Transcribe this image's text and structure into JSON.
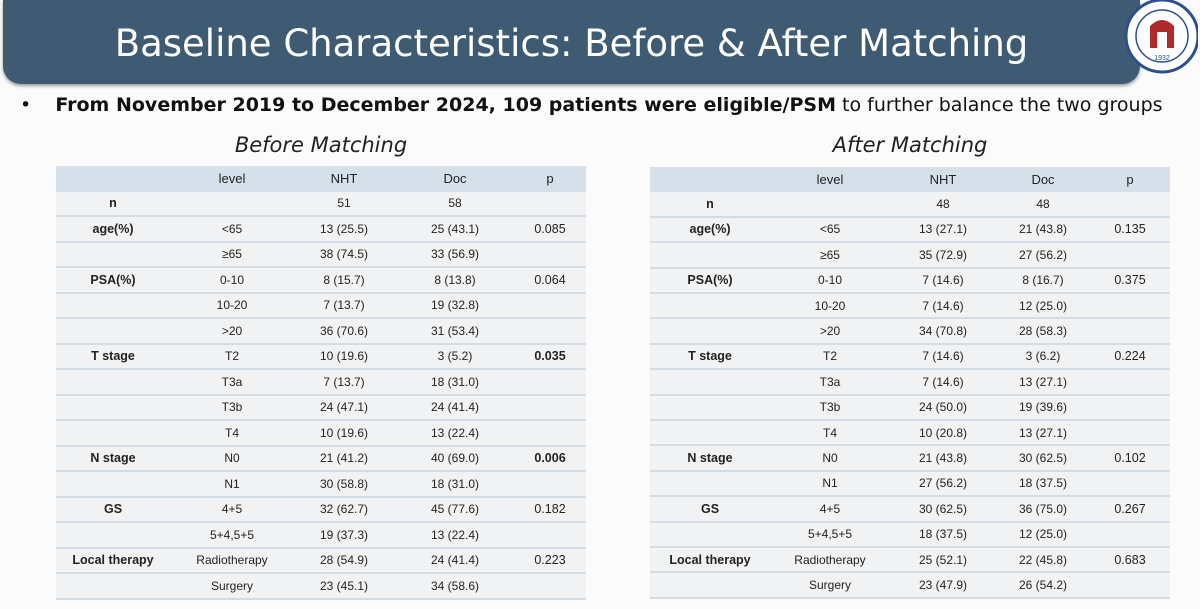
{
  "header": {
    "title": "Baseline Characteristics: Before & After Matching",
    "logo_text": "1932"
  },
  "bullet": {
    "bold": "From November 2019 to December 2024, 109 patients were eligible/PSM",
    "rest": " to further balance the two groups"
  },
  "tables": [
    {
      "caption": "Before Matching",
      "columns": [
        "level",
        "NHT",
        "Doc",
        "p"
      ],
      "rows": [
        {
          "cells": [
            "n",
            null,
            "51",
            "58",
            null
          ]
        },
        {
          "cells": [
            "age(%)",
            "<65",
            "13 (25.5)",
            "25 (43.1)",
            "0.085"
          ]
        },
        {
          "cells": [
            null,
            "≥65",
            "38 (74.5)",
            "33 (56.9)",
            null
          ]
        },
        {
          "cells": [
            "PSA(%)",
            "0-10",
            "8 (15.7)",
            "8 (13.8)",
            "0.064"
          ]
        },
        {
          "cells": [
            null,
            "10-20",
            "7 (13.7)",
            "19 (32.8)",
            null
          ]
        },
        {
          "cells": [
            null,
            ">20",
            "36 (70.6)",
            "31 (53.4)",
            null
          ]
        },
        {
          "cells": [
            "T stage",
            "T2",
            "10 (19.6)",
            "3 (5.2)",
            "0.035"
          ],
          "bold_p": true
        },
        {
          "cells": [
            null,
            "T3a",
            "7 (13.7)",
            "18 (31.0)",
            null
          ]
        },
        {
          "cells": [
            null,
            "T3b",
            "24 (47.1)",
            "24 (41.4)",
            null
          ]
        },
        {
          "cells": [
            null,
            "T4",
            "10 (19.6)",
            "13 (22.4)",
            null
          ]
        },
        {
          "cells": [
            "N stage",
            "N0",
            "21 (41.2)",
            "40 (69.0)",
            "0.006"
          ],
          "bold_p": true
        },
        {
          "cells": [
            null,
            "N1",
            "30 (58.8)",
            "18 (31.0)",
            null
          ]
        },
        {
          "cells": [
            "GS",
            "4+5",
            "32 (62.7)",
            "45 (77.6)",
            "0.182"
          ]
        },
        {
          "cells": [
            null,
            "5+4,5+5",
            "19 (37.3)",
            "13 (22.4)",
            null
          ]
        },
        {
          "cells": [
            "Local therapy",
            "Radiotherapy",
            "28 (54.9)",
            "24 (41.4)",
            "0.223"
          ]
        },
        {
          "cells": [
            null,
            "Surgery",
            "23 (45.1)",
            "34 (58.6)",
            null
          ]
        }
      ]
    },
    {
      "caption": "After Matching",
      "columns": [
        "level",
        "NHT",
        "Doc",
        "p"
      ],
      "rows": [
        {
          "cells": [
            "n",
            null,
            "48",
            "48",
            null
          ]
        },
        {
          "cells": [
            "age(%)",
            "<65",
            "13 (27.1)",
            "21 (43.8)",
            "0.135"
          ]
        },
        {
          "cells": [
            null,
            "≥65",
            "35 (72.9)",
            "27 (56.2)",
            null
          ]
        },
        {
          "cells": [
            "PSA(%)",
            "0-10",
            "7 (14.6)",
            "8 (16.7)",
            "0.375"
          ]
        },
        {
          "cells": [
            null,
            "10-20",
            "7 (14.6)",
            "12 (25.0)",
            null
          ]
        },
        {
          "cells": [
            null,
            ">20",
            "34 (70.8)",
            "28 (58.3)",
            null
          ]
        },
        {
          "cells": [
            "T stage",
            "T2",
            "7 (14.6)",
            "3 (6.2)",
            "0.224"
          ]
        },
        {
          "cells": [
            null,
            "T3a",
            "7 (14.6)",
            "13 (27.1)",
            null
          ]
        },
        {
          "cells": [
            null,
            "T3b",
            "24 (50.0)",
            "19 (39.6)",
            null
          ]
        },
        {
          "cells": [
            null,
            "T4",
            "10 (20.8)",
            "13 (27.1)",
            null
          ]
        },
        {
          "cells": [
            "N stage",
            "N0",
            "21 (43.8)",
            "30 (62.5)",
            "0.102"
          ]
        },
        {
          "cells": [
            null,
            "N1",
            "27 (56.2)",
            "18 (37.5)",
            null
          ]
        },
        {
          "cells": [
            "GS",
            "4+5",
            "30 (62.5)",
            "36 (75.0)",
            "0.267"
          ]
        },
        {
          "cells": [
            null,
            "5+4,5+5",
            "18 (37.5)",
            "12 (25.0)",
            null
          ]
        },
        {
          "cells": [
            "Local therapy",
            "Radiotherapy",
            "25 (52.1)",
            "22 (45.8)",
            "0.683"
          ]
        },
        {
          "cells": [
            null,
            "Surgery",
            "23 (47.9)",
            "26 (54.2)",
            null
          ]
        }
      ]
    }
  ]
}
